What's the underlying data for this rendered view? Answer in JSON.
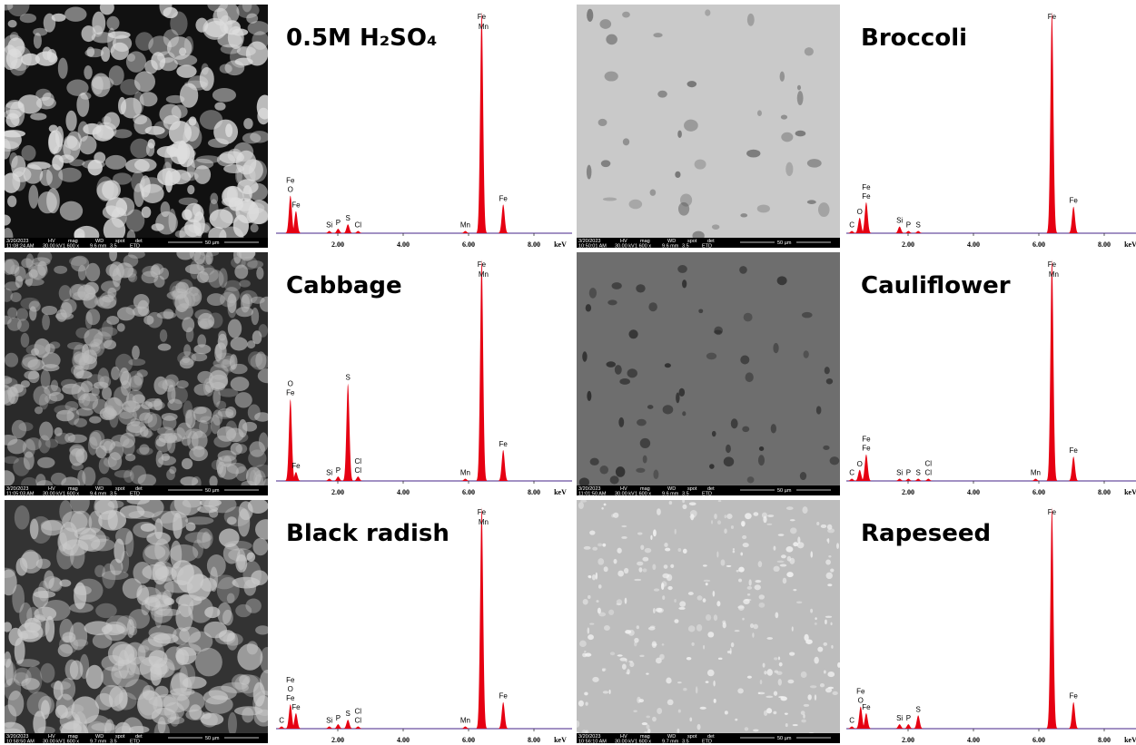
{
  "sem_headings": [
    "HV",
    "mag",
    "WD",
    "spot",
    "det"
  ],
  "chart_data": [
    {
      "type": "spectrum",
      "title": "0.5M H₂SO₄",
      "x_unit": "keV",
      "xlim": [
        0,
        9
      ],
      "xticks": [
        {
          "value": 2,
          "label": "2.00"
        },
        {
          "value": 4,
          "label": "4.00"
        },
        {
          "value": 6,
          "label": "6.00"
        },
        {
          "value": 8,
          "label": "8.00"
        }
      ],
      "color": "#e60012",
      "sem": {
        "date": "3/20/2023",
        "time": "11:08:24 AM",
        "hv": "30.00 kV",
        "mag": "1 600 x",
        "wd": "9.6 mm",
        "spot": "3.5",
        "det": "ETD",
        "scale": "50 µm"
      },
      "peaks": [
        {
          "labels": [
            "Fe",
            "O"
          ],
          "energy": 0.55,
          "intensity": 17
        },
        {
          "labels": [
            "Fe"
          ],
          "energy": 0.72,
          "intensity": 10
        },
        {
          "labels": [
            "Si"
          ],
          "energy": 1.74,
          "intensity": 1
        },
        {
          "labels": [
            "P"
          ],
          "energy": 2.01,
          "intensity": 2
        },
        {
          "labels": [
            "S"
          ],
          "energy": 2.31,
          "intensity": 4
        },
        {
          "labels": [
            "Cl"
          ],
          "energy": 2.62,
          "intensity": 1
        },
        {
          "labels": [
            "Mn"
          ],
          "energy": 5.9,
          "intensity": 1
        },
        {
          "labels": [
            "Fe",
            "Mn"
          ],
          "energy": 6.4,
          "intensity": 100
        },
        {
          "labels": [
            "Fe"
          ],
          "energy": 7.06,
          "intensity": 13
        }
      ]
    },
    {
      "type": "spectrum",
      "title": "Cabbage",
      "x_unit": "keV",
      "xlim": [
        0,
        9
      ],
      "xticks": [
        {
          "value": 2,
          "label": "2.00"
        },
        {
          "value": 4,
          "label": "4.00"
        },
        {
          "value": 6,
          "label": "6.00"
        },
        {
          "value": 8,
          "label": "8.00"
        }
      ],
      "color": "#e60012",
      "sem": {
        "date": "3/20/2023",
        "time": "11:05:03 AM",
        "hv": "30.00 kV",
        "mag": "1 600 x",
        "wd": "9.4 mm",
        "spot": "3.5",
        "det": "ETD",
        "scale": "50 µm"
      },
      "peaks": [
        {
          "labels": [
            "O",
            "Fe"
          ],
          "energy": 0.55,
          "intensity": 37
        },
        {
          "labels": [
            "Fe"
          ],
          "energy": 0.72,
          "intensity": 4
        },
        {
          "labels": [
            "Si"
          ],
          "energy": 1.74,
          "intensity": 1
        },
        {
          "labels": [
            "P"
          ],
          "energy": 2.01,
          "intensity": 2
        },
        {
          "labels": [
            "S"
          ],
          "energy": 2.31,
          "intensity": 44
        },
        {
          "labels": [
            "Cl",
            "Cl"
          ],
          "energy": 2.62,
          "intensity": 2
        },
        {
          "labels": [
            "Mn"
          ],
          "energy": 5.9,
          "intensity": 1
        },
        {
          "labels": [
            "Fe",
            "Mn"
          ],
          "energy": 6.4,
          "intensity": 100
        },
        {
          "labels": [
            "Fe"
          ],
          "energy": 7.06,
          "intensity": 14
        }
      ]
    },
    {
      "type": "spectrum",
      "title": "Black radish",
      "x_unit": "keV",
      "xlim": [
        0,
        9
      ],
      "xticks": [
        {
          "value": 2,
          "label": "2.00"
        },
        {
          "value": 4,
          "label": "4.00"
        },
        {
          "value": 6,
          "label": "6.00"
        },
        {
          "value": 8,
          "label": "8.00"
        }
      ],
      "color": "#e60012",
      "sem": {
        "date": "3/20/2023",
        "time": "10:58:50 AM",
        "hv": "30.00 kV",
        "mag": "1 600 x",
        "wd": "9.7 mm",
        "spot": "3.5",
        "det": "ETD",
        "scale": "50 µm"
      },
      "peaks": [
        {
          "labels": [
            "C"
          ],
          "energy": 0.28,
          "intensity": 1
        },
        {
          "labels": [
            "Fe",
            "O",
            "Fe"
          ],
          "energy": 0.55,
          "intensity": 11
        },
        {
          "labels": [
            "Fe"
          ],
          "energy": 0.72,
          "intensity": 7
        },
        {
          "labels": [
            "Si"
          ],
          "energy": 1.74,
          "intensity": 1
        },
        {
          "labels": [
            "P"
          ],
          "energy": 2.01,
          "intensity": 2
        },
        {
          "labels": [
            "S"
          ],
          "energy": 2.31,
          "intensity": 4
        },
        {
          "labels": [
            "Cl",
            "Cl"
          ],
          "energy": 2.62,
          "intensity": 1
        },
        {
          "labels": [
            "Mn"
          ],
          "energy": 5.9,
          "intensity": 1
        },
        {
          "labels": [
            "Fe",
            "Mn"
          ],
          "energy": 6.4,
          "intensity": 100
        },
        {
          "labels": [
            "Fe"
          ],
          "energy": 7.06,
          "intensity": 12
        }
      ]
    },
    {
      "type": "spectrum",
      "title": "Broccoli",
      "x_unit": "keV",
      "xlim": [
        0,
        9
      ],
      "xticks": [
        {
          "value": 2,
          "label": "2.00"
        },
        {
          "value": 4,
          "label": "4.00"
        },
        {
          "value": 6,
          "label": "6.00"
        },
        {
          "value": 8,
          "label": "8.00"
        }
      ],
      "color": "#e60012",
      "sem": {
        "date": "3/20/2023",
        "time": "10:50:01 AM",
        "hv": "30.00 kV",
        "mag": "1 600 x",
        "wd": "9.6 mm",
        "spot": "3.5",
        "det": "ETD",
        "scale": "50 µm"
      },
      "peaks": [
        {
          "labels": [
            "C"
          ],
          "energy": 0.28,
          "intensity": 1
        },
        {
          "labels": [
            "O"
          ],
          "energy": 0.52,
          "intensity": 7
        },
        {
          "labels": [
            "Fe",
            "Fe"
          ],
          "energy": 0.72,
          "intensity": 14
        },
        {
          "labels": [
            "Si"
          ],
          "energy": 1.74,
          "intensity": 3
        },
        {
          "labels": [
            "P"
          ],
          "energy": 2.01,
          "intensity": 1
        },
        {
          "labels": [
            "S"
          ],
          "energy": 2.31,
          "intensity": 1
        },
        {
          "labels": [
            "Fe"
          ],
          "energy": 6.4,
          "intensity": 100
        },
        {
          "labels": [
            "Fe"
          ],
          "energy": 7.06,
          "intensity": 12
        }
      ]
    },
    {
      "type": "spectrum",
      "title": "Cauliflower",
      "x_unit": "keV",
      "xlim": [
        0,
        9
      ],
      "xticks": [
        {
          "value": 2,
          "label": "2.00"
        },
        {
          "value": 4,
          "label": "4.00"
        },
        {
          "value": 6,
          "label": "6.00"
        },
        {
          "value": 8,
          "label": "8.00"
        }
      ],
      "color": "#e60012",
      "sem": {
        "date": "3/20/2023",
        "time": "11:01:50 AM",
        "hv": "30.00 kV",
        "mag": "1 600 x",
        "wd": "9.6 mm",
        "spot": "3.5",
        "det": "ETD",
        "scale": "50 µm"
      },
      "peaks": [
        {
          "labels": [
            "C"
          ],
          "energy": 0.28,
          "intensity": 1
        },
        {
          "labels": [
            "O"
          ],
          "energy": 0.52,
          "intensity": 5
        },
        {
          "labels": [
            "Fe",
            "Fe"
          ],
          "energy": 0.72,
          "intensity": 12
        },
        {
          "labels": [
            "Si"
          ],
          "energy": 1.74,
          "intensity": 1
        },
        {
          "labels": [
            "P"
          ],
          "energy": 2.01,
          "intensity": 1
        },
        {
          "labels": [
            "S"
          ],
          "energy": 2.31,
          "intensity": 1
        },
        {
          "labels": [
            "Cl",
            "Cl"
          ],
          "energy": 2.62,
          "intensity": 1
        },
        {
          "labels": [
            "Mn"
          ],
          "energy": 5.9,
          "intensity": 1
        },
        {
          "labels": [
            "Fe",
            "Mn"
          ],
          "energy": 6.4,
          "intensity": 100
        },
        {
          "labels": [
            "Fe"
          ],
          "energy": 7.06,
          "intensity": 11
        }
      ]
    },
    {
      "type": "spectrum",
      "title": "Rapeseed",
      "x_unit": "keV",
      "xlim": [
        0,
        9
      ],
      "xticks": [
        {
          "value": 2,
          "label": "2.00"
        },
        {
          "value": 4,
          "label": "4.00"
        },
        {
          "value": 6,
          "label": "6.00"
        },
        {
          "value": 8,
          "label": "8.00"
        }
      ],
      "color": "#e60012",
      "sem": {
        "date": "3/20/2023",
        "time": "10:56:10 AM",
        "hv": "30.00 kV",
        "mag": "1 600 x",
        "wd": "9.7 mm",
        "spot": "3.5",
        "det": "ETD",
        "scale": "50 µm"
      },
      "peaks": [
        {
          "labels": [
            "C"
          ],
          "energy": 0.28,
          "intensity": 1
        },
        {
          "labels": [
            "Fe",
            "O"
          ],
          "energy": 0.55,
          "intensity": 10
        },
        {
          "labels": [
            "Fe"
          ],
          "energy": 0.72,
          "intensity": 7
        },
        {
          "labels": [
            "Si"
          ],
          "energy": 1.74,
          "intensity": 2
        },
        {
          "labels": [
            "P"
          ],
          "energy": 2.01,
          "intensity": 2
        },
        {
          "labels": [
            "S"
          ],
          "energy": 2.31,
          "intensity": 6
        },
        {
          "labels": [
            "Fe"
          ],
          "energy": 6.4,
          "intensity": 100
        },
        {
          "labels": [
            "Fe"
          ],
          "energy": 7.06,
          "intensity": 12
        }
      ]
    }
  ]
}
